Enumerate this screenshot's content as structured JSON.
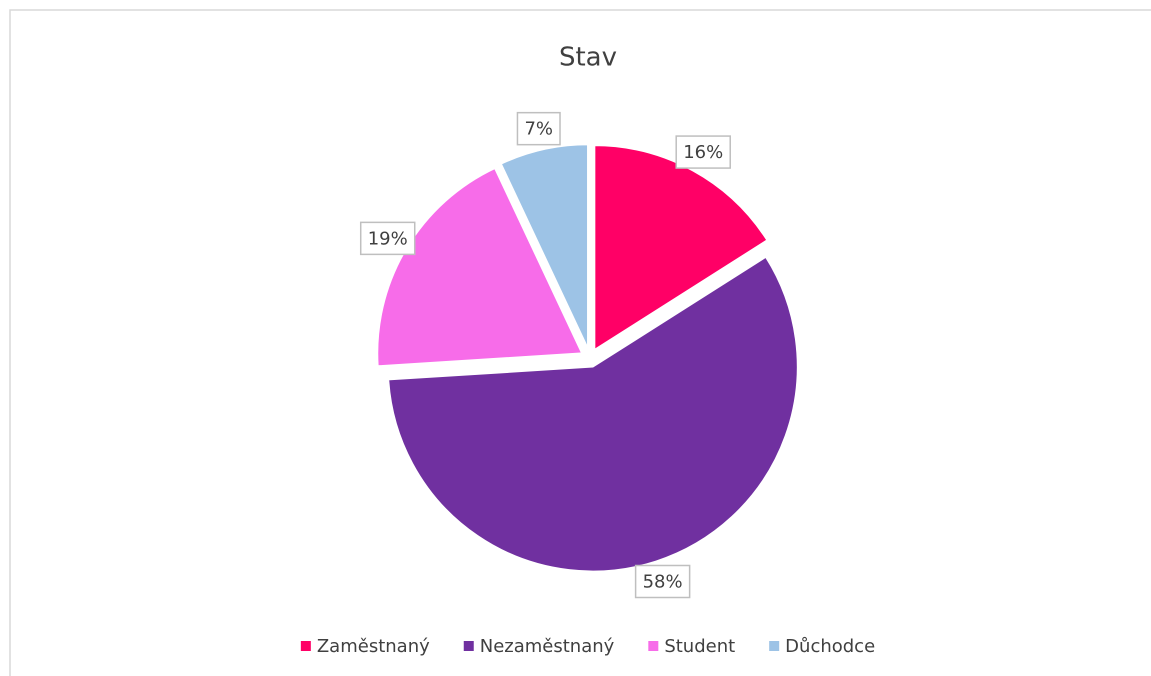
{
  "chart_data": {
    "type": "pie",
    "title": "Stav",
    "categories": [
      "Zaměstnaný",
      "Nezaměstnaný",
      "Student",
      "Důchodce"
    ],
    "values": [
      16,
      58,
      19,
      7
    ],
    "value_labels": [
      "16%",
      "58%",
      "19%",
      "7%"
    ],
    "colors": [
      "#ff0066",
      "#7030a0",
      "#f76ce9",
      "#9dc3e6"
    ],
    "legend": "bottom"
  }
}
